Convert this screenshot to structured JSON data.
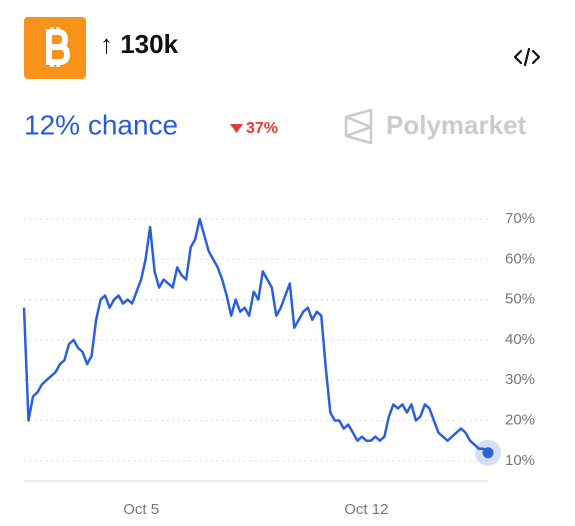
{
  "chart_data": {
    "type": "line",
    "title": "↑ 130k",
    "chance_label": "12% chance",
    "change_label": "37%",
    "brand": "Polymarket",
    "categories": [
      null,
      null,
      null,
      null,
      null,
      null,
      null,
      null,
      null,
      null,
      null,
      null,
      null,
      null,
      null,
      null,
      null,
      null,
      null,
      null,
      null,
      null,
      null,
      null,
      null,
      null,
      "Oct 5",
      null,
      null,
      null,
      null,
      null,
      null,
      null,
      null,
      null,
      null,
      null,
      null,
      null,
      null,
      null,
      null,
      null,
      null,
      null,
      null,
      null,
      null,
      null,
      null,
      null,
      null,
      null,
      null,
      null,
      null,
      null,
      null,
      null,
      null,
      null,
      null,
      null,
      null,
      null,
      null,
      null,
      null,
      null,
      null,
      null,
      null,
      null,
      null,
      null,
      "Oct 12",
      null,
      null,
      null,
      null,
      null,
      null,
      null,
      null,
      null,
      null,
      null,
      null,
      null,
      null,
      null,
      null,
      null,
      null,
      null,
      null,
      null,
      null,
      null,
      null,
      null,
      null,
      null
    ],
    "series": [
      {
        "color": "#2c5fdc",
        "values": [
          48,
          20,
          26,
          27,
          29,
          30,
          31,
          32,
          34,
          35,
          39,
          40,
          38,
          37,
          34,
          36,
          45,
          50,
          51,
          48,
          50,
          51,
          49,
          50,
          49,
          52,
          55,
          60,
          68,
          57,
          53,
          55,
          54,
          53,
          58,
          56,
          55,
          63,
          65,
          70,
          66,
          62,
          60,
          58,
          55,
          51,
          46,
          50,
          47,
          48,
          46,
          52,
          50,
          57,
          55,
          53,
          46,
          48,
          51,
          54,
          43,
          45,
          47,
          48,
          45,
          47,
          46,
          33,
          22,
          20,
          20,
          18,
          19,
          17,
          15,
          16,
          15,
          15,
          16,
          15,
          16,
          21,
          24,
          23,
          24,
          22,
          24,
          20,
          21,
          24,
          23,
          20,
          17,
          16,
          15,
          16,
          17,
          18,
          17,
          15,
          14,
          13,
          13,
          12
        ]
      }
    ],
    "ylim": [
      5,
      70
    ],
    "yticks": [
      {
        "value": 10,
        "label": "10%"
      },
      {
        "value": 20,
        "label": "20%"
      },
      {
        "value": 30,
        "label": "30%"
      },
      {
        "value": 40,
        "label": "40%"
      },
      {
        "value": 50,
        "label": "50%"
      },
      {
        "value": 60,
        "label": "60%"
      },
      {
        "value": 70,
        "label": "70%"
      }
    ],
    "grid": true
  }
}
